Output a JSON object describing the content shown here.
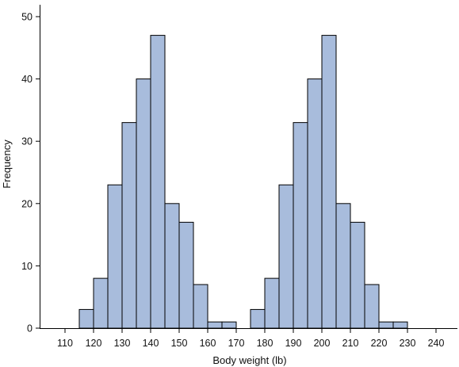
{
  "chart_data": {
    "type": "bar",
    "title": "",
    "xlabel": "Body weight (lb)",
    "ylabel": "Frequency",
    "xlim": [
      100,
      245
    ],
    "ylim": [
      0,
      52
    ],
    "x_ticks": [
      110,
      120,
      130,
      140,
      150,
      160,
      170,
      180,
      190,
      200,
      210,
      220,
      230,
      240
    ],
    "y_ticks": [
      0,
      10,
      20,
      30,
      40,
      50
    ],
    "bin_width": 5,
    "bar_color": "#a8bcdc",
    "grid": false,
    "legend": "none",
    "bins": [
      {
        "start": 115,
        "end": 120,
        "count": 3
      },
      {
        "start": 120,
        "end": 125,
        "count": 8
      },
      {
        "start": 125,
        "end": 130,
        "count": 23
      },
      {
        "start": 130,
        "end": 135,
        "count": 33
      },
      {
        "start": 135,
        "end": 140,
        "count": 40
      },
      {
        "start": 140,
        "end": 145,
        "count": 47
      },
      {
        "start": 145,
        "end": 150,
        "count": 20
      },
      {
        "start": 150,
        "end": 155,
        "count": 17
      },
      {
        "start": 155,
        "end": 160,
        "count": 7
      },
      {
        "start": 160,
        "end": 165,
        "count": 1
      },
      {
        "start": 165,
        "end": 170,
        "count": 1
      },
      {
        "start": 175,
        "end": 180,
        "count": 3
      },
      {
        "start": 180,
        "end": 185,
        "count": 8
      },
      {
        "start": 185,
        "end": 190,
        "count": 23
      },
      {
        "start": 190,
        "end": 195,
        "count": 33
      },
      {
        "start": 195,
        "end": 200,
        "count": 40
      },
      {
        "start": 200,
        "end": 205,
        "count": 47
      },
      {
        "start": 205,
        "end": 210,
        "count": 20
      },
      {
        "start": 210,
        "end": 215,
        "count": 17
      },
      {
        "start": 215,
        "end": 220,
        "count": 7
      },
      {
        "start": 220,
        "end": 225,
        "count": 1
      },
      {
        "start": 225,
        "end": 230,
        "count": 1
      }
    ]
  }
}
